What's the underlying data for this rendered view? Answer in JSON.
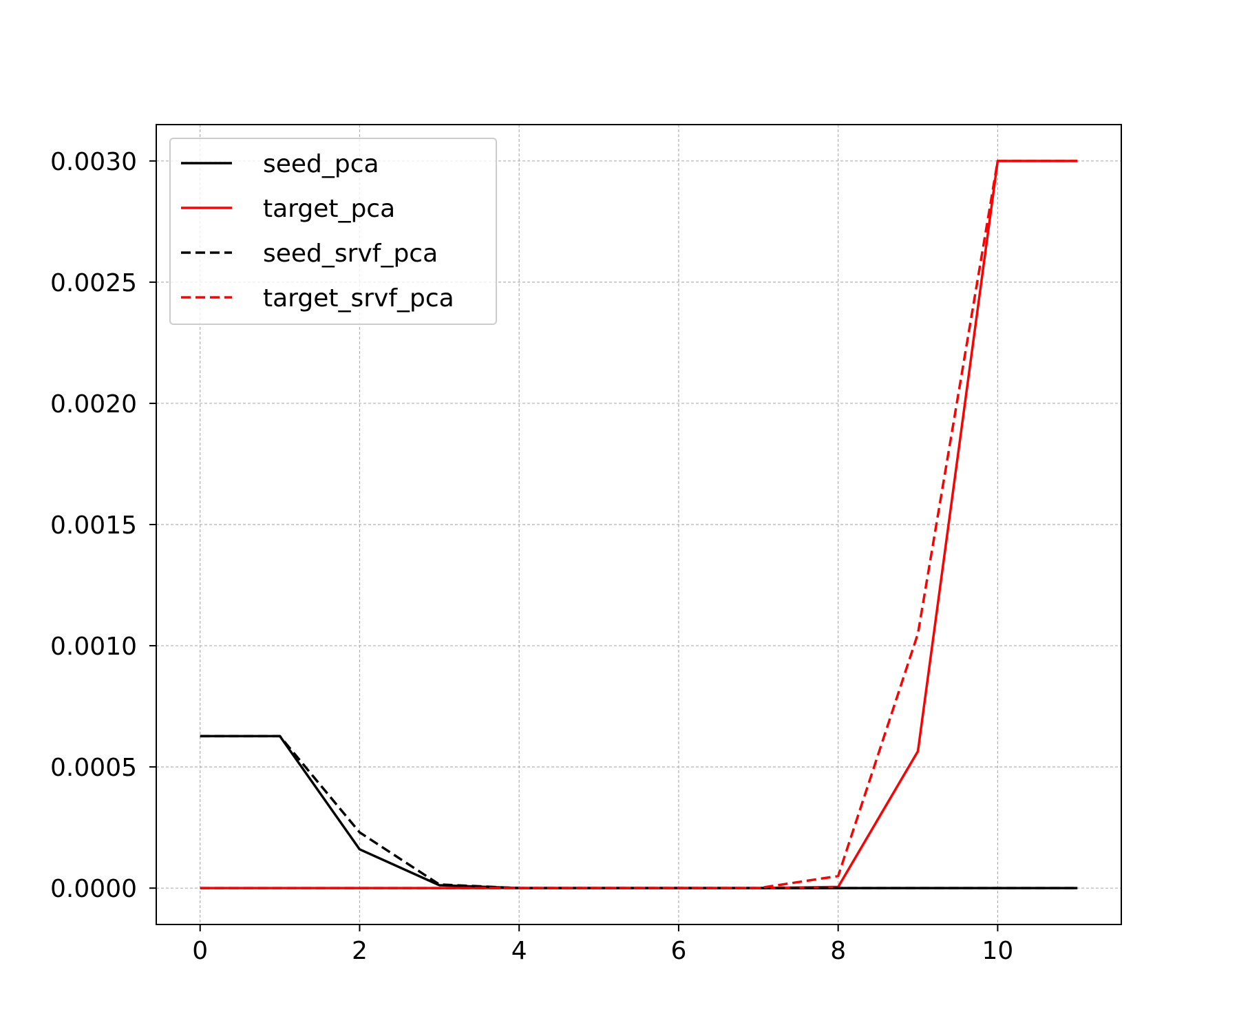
{
  "chart_data": {
    "type": "line",
    "title": "",
    "xlabel": "",
    "ylabel": "",
    "xlim": [
      -0.55,
      11.55
    ],
    "ylim": [
      -0.00015,
      0.00315
    ],
    "xticks": [
      0,
      2,
      4,
      6,
      8,
      10
    ],
    "xtick_labels": [
      "0",
      "2",
      "4",
      "6",
      "8",
      "10"
    ],
    "yticks": [
      0.0,
      0.0005,
      0.001,
      0.0015,
      0.002,
      0.0025,
      0.003
    ],
    "ytick_labels": [
      "0.0000",
      "0.0005",
      "0.0010",
      "0.0015",
      "0.0020",
      "0.0025",
      "0.0030"
    ],
    "grid": true,
    "legend_position": "upper-left",
    "x": [
      0,
      1,
      2,
      3,
      4,
      5,
      6,
      7,
      8,
      9,
      10,
      11
    ],
    "series": [
      {
        "name": "seed_pca",
        "color": "#000000",
        "dash": "solid",
        "values": [
          0.000627,
          0.000627,
          0.00016,
          1.2e-05,
          0.0,
          0.0,
          0.0,
          0.0,
          0.0,
          0.0,
          0.0,
          0.0
        ]
      },
      {
        "name": "target_pca",
        "color": "#ff0000",
        "dash": "solid",
        "values": [
          0.0,
          0.0,
          0.0,
          0.0,
          0.0,
          0.0,
          0.0,
          0.0,
          5e-06,
          0.000565,
          0.003,
          0.003
        ]
      },
      {
        "name": "seed_srvf_pca",
        "color": "#000000",
        "dash": "dashed",
        "values": [
          0.000627,
          0.000627,
          0.00023,
          1.5e-05,
          0.0,
          0.0,
          0.0,
          0.0,
          0.0,
          0.0,
          0.0,
          0.0
        ]
      },
      {
        "name": "target_srvf_pca",
        "color": "#ff0000",
        "dash": "dashed",
        "values": [
          0.0,
          0.0,
          0.0,
          0.0,
          0.0,
          0.0,
          0.0,
          0.0,
          5e-05,
          0.00105,
          0.003,
          0.003
        ]
      }
    ]
  }
}
